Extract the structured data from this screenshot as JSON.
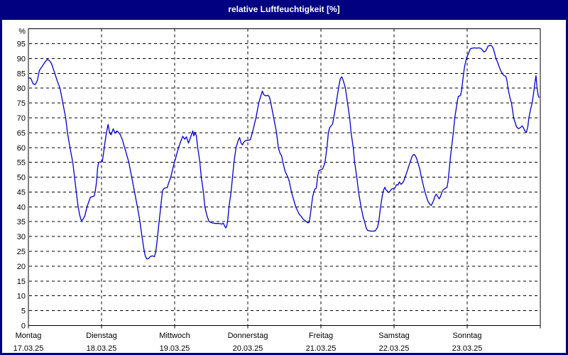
{
  "window": {
    "title": "relative Luftfeuchtigkeit [%]"
  },
  "colors": {
    "titlebar_bg": "#000080",
    "titlebar_text": "#ffffff",
    "plot_bg": "#ffffff",
    "grid": "#000000",
    "line": "#0000c8",
    "label_text": "#000000"
  },
  "chart_data": {
    "type": "line",
    "title": "relative Luftfeuchtigkeit [%]",
    "y_axis": {
      "unit_label": "%",
      "min": 0,
      "max": 100,
      "tick_step": 5,
      "tick_labels": [
        "0",
        "5",
        "10",
        "15",
        "20",
        "25",
        "30",
        "35",
        "40",
        "45",
        "50",
        "55",
        "60",
        "65",
        "70",
        "75",
        "80",
        "85",
        "90",
        "95"
      ],
      "grid": "dashed"
    },
    "x_axis": {
      "grid": "dashed",
      "unit": "days",
      "days": [
        {
          "name": "Montag",
          "date": "17.03.25"
        },
        {
          "name": "Dienstag",
          "date": "18.03.25"
        },
        {
          "name": "Mittwoch",
          "date": "19.03.25"
        },
        {
          "name": "Donnerstag",
          "date": "20.03.25"
        },
        {
          "name": "Freitag",
          "date": "21.03.25"
        },
        {
          "name": "Samstag",
          "date": "22.03.25"
        },
        {
          "name": "Sonntag",
          "date": "23.03.25"
        }
      ]
    },
    "series": [
      {
        "name": "relative Luftfeuchtigkeit",
        "color": "#0000c8",
        "x_unit": "days_since_17.03.25",
        "points": [
          [
            0.005,
            83.5
          ],
          [
            0.034,
            83.3
          ],
          [
            0.063,
            81.5
          ],
          [
            0.092,
            81.2
          ],
          [
            0.121,
            82.5
          ],
          [
            0.15,
            86
          ],
          [
            0.18,
            87
          ],
          [
            0.218,
            88.5
          ],
          [
            0.257,
            89.7
          ],
          [
            0.286,
            89.3
          ],
          [
            0.316,
            88.3
          ],
          [
            0.354,
            85.5
          ],
          [
            0.393,
            82.5
          ],
          [
            0.432,
            80
          ],
          [
            0.471,
            75
          ],
          [
            0.51,
            70
          ],
          [
            0.534,
            65
          ],
          [
            0.568,
            60
          ],
          [
            0.607,
            55
          ],
          [
            0.631,
            50
          ],
          [
            0.655,
            45
          ],
          [
            0.68,
            40
          ],
          [
            0.704,
            37
          ],
          [
            0.723,
            35.4
          ],
          [
            0.743,
            35.6
          ],
          [
            0.772,
            37
          ],
          [
            0.801,
            40
          ],
          [
            0.83,
            42
          ],
          [
            0.85,
            43.3
          ],
          [
            0.879,
            43.5
          ],
          [
            0.898,
            43.6
          ],
          [
            0.913,
            45
          ],
          [
            0.927,
            47.5
          ],
          [
            0.937,
            50
          ],
          [
            0.947,
            53
          ],
          [
            0.959,
            55
          ],
          [
            0.985,
            55.1
          ],
          [
            1.01,
            55.2
          ],
          [
            1.024,
            57.5
          ],
          [
            1.049,
            62
          ],
          [
            1.068,
            65
          ],
          [
            1.089,
            67.8
          ],
          [
            1.112,
            64.9
          ],
          [
            1.131,
            64.3
          ],
          [
            1.16,
            66.3
          ],
          [
            1.184,
            64.8
          ],
          [
            1.209,
            65.6
          ],
          [
            1.233,
            65.1
          ],
          [
            1.257,
            64.3
          ],
          [
            1.286,
            62.5
          ],
          [
            1.316,
            60
          ],
          [
            1.345,
            57.5
          ],
          [
            1.374,
            55
          ],
          [
            1.413,
            50
          ],
          [
            1.451,
            45
          ],
          [
            1.49,
            40
          ],
          [
            1.519,
            36
          ],
          [
            1.548,
            31
          ],
          [
            1.578,
            26
          ],
          [
            1.597,
            23.5
          ],
          [
            1.621,
            22.4
          ],
          [
            1.646,
            22.6
          ],
          [
            1.665,
            23.2
          ],
          [
            1.694,
            23.5
          ],
          [
            1.723,
            23.2
          ],
          [
            1.743,
            25
          ],
          [
            1.762,
            29
          ],
          [
            1.781,
            33.5
          ],
          [
            1.801,
            38
          ],
          [
            1.82,
            42.5
          ],
          [
            1.835,
            45.5
          ],
          [
            1.859,
            46.3
          ],
          [
            1.898,
            46.5
          ],
          [
            1.917,
            48
          ],
          [
            1.947,
            50
          ],
          [
            1.985,
            54
          ],
          [
            2.015,
            56.5
          ],
          [
            2.053,
            60
          ],
          [
            2.083,
            62
          ],
          [
            2.112,
            63.8
          ],
          [
            2.136,
            62.8
          ],
          [
            2.16,
            63.6
          ],
          [
            2.189,
            61.5
          ],
          [
            2.218,
            63.5
          ],
          [
            2.248,
            65.6
          ],
          [
            2.262,
            63.9
          ],
          [
            2.277,
            65.2
          ],
          [
            2.296,
            64.0
          ],
          [
            2.316,
            60
          ],
          [
            2.345,
            55
          ],
          [
            2.364,
            50
          ],
          [
            2.393,
            45
          ],
          [
            2.413,
            40
          ],
          [
            2.442,
            37
          ],
          [
            2.471,
            35
          ],
          [
            2.51,
            34.6
          ],
          [
            2.558,
            34.4
          ],
          [
            2.607,
            34.4
          ],
          [
            2.646,
            34.2
          ],
          [
            2.665,
            34.5
          ],
          [
            2.684,
            33.5
          ],
          [
            2.699,
            32.9
          ],
          [
            2.713,
            33.5
          ],
          [
            2.728,
            36
          ],
          [
            2.743,
            40
          ],
          [
            2.772,
            45
          ],
          [
            2.791,
            50
          ],
          [
            2.811,
            55
          ],
          [
            2.84,
            60
          ],
          [
            2.869,
            62.4
          ],
          [
            2.888,
            63.4
          ],
          [
            2.908,
            61.5
          ],
          [
            2.927,
            60.9
          ],
          [
            2.946,
            61.8
          ],
          [
            2.966,
            62.3
          ],
          [
            2.995,
            62.4
          ],
          [
            3.034,
            62.6
          ],
          [
            3.063,
            65
          ],
          [
            3.092,
            68
          ],
          [
            3.112,
            70
          ],
          [
            3.15,
            75
          ],
          [
            3.18,
            77.5
          ],
          [
            3.199,
            79
          ],
          [
            3.218,
            77.8
          ],
          [
            3.247,
            77.4
          ],
          [
            3.276,
            77.6
          ],
          [
            3.296,
            77
          ],
          [
            3.316,
            75
          ],
          [
            3.354,
            70
          ],
          [
            3.393,
            65
          ],
          [
            3.417,
            60
          ],
          [
            3.442,
            58
          ],
          [
            3.461,
            57.3
          ],
          [
            3.481,
            55
          ],
          [
            3.51,
            52
          ],
          [
            3.549,
            50
          ],
          [
            3.568,
            48.5
          ],
          [
            3.597,
            45
          ],
          [
            3.626,
            42.5
          ],
          [
            3.655,
            40
          ],
          [
            3.684,
            38.5
          ],
          [
            3.704,
            37.5
          ],
          [
            3.733,
            36.7
          ],
          [
            3.752,
            36
          ],
          [
            3.772,
            35.5
          ],
          [
            3.791,
            35.2
          ],
          [
            3.82,
            34.6
          ],
          [
            3.84,
            34.8
          ],
          [
            3.859,
            38
          ],
          [
            3.874,
            41
          ],
          [
            3.888,
            43.5
          ],
          [
            3.903,
            45
          ],
          [
            3.917,
            46
          ],
          [
            3.937,
            46.3
          ],
          [
            3.956,
            50.5
          ],
          [
            3.976,
            52.3
          ],
          [
            3.995,
            52.5
          ],
          [
            4.024,
            52.8
          ],
          [
            4.044,
            54
          ],
          [
            4.058,
            55.5
          ],
          [
            4.083,
            60
          ],
          [
            4.102,
            65
          ],
          [
            4.121,
            66.8
          ],
          [
            4.141,
            67.3
          ],
          [
            4.16,
            68
          ],
          [
            4.175,
            70
          ],
          [
            4.189,
            72
          ],
          [
            4.209,
            75
          ],
          [
            4.228,
            78
          ],
          [
            4.248,
            81
          ],
          [
            4.267,
            83.3
          ],
          [
            4.286,
            83.8
          ],
          [
            4.306,
            82.5
          ],
          [
            4.335,
            80
          ],
          [
            4.364,
            75
          ],
          [
            4.393,
            70
          ],
          [
            4.413,
            65
          ],
          [
            4.442,
            60
          ],
          [
            4.461,
            55
          ],
          [
            4.49,
            50
          ],
          [
            4.515,
            45
          ],
          [
            4.549,
            40
          ],
          [
            4.578,
            36.5
          ],
          [
            4.597,
            35
          ],
          [
            4.617,
            33
          ],
          [
            4.636,
            32.1
          ],
          [
            4.665,
            31.9
          ],
          [
            4.704,
            31.8
          ],
          [
            4.743,
            31.9
          ],
          [
            4.772,
            33
          ],
          [
            4.791,
            35
          ],
          [
            4.816,
            40
          ],
          [
            4.84,
            43.8
          ],
          [
            4.859,
            45.8
          ],
          [
            4.874,
            46.6
          ],
          [
            4.888,
            45.8
          ],
          [
            4.908,
            45.3
          ],
          [
            4.927,
            44.8
          ],
          [
            4.946,
            45.3
          ],
          [
            4.966,
            46
          ],
          [
            4.995,
            46.2
          ],
          [
            5.014,
            46.4
          ],
          [
            5.034,
            47.5
          ],
          [
            5.053,
            47.3
          ],
          [
            5.073,
            48.4
          ],
          [
            5.092,
            47.6
          ],
          [
            5.112,
            47.9
          ],
          [
            5.131,
            48.6
          ],
          [
            5.15,
            50
          ],
          [
            5.18,
            52
          ],
          [
            5.199,
            53.5
          ],
          [
            5.218,
            55
          ],
          [
            5.247,
            57
          ],
          [
            5.267,
            57.7
          ],
          [
            5.286,
            57.4
          ],
          [
            5.306,
            56.5
          ],
          [
            5.325,
            55
          ],
          [
            5.354,
            52.5
          ],
          [
            5.374,
            50
          ],
          [
            5.403,
            47
          ],
          [
            5.422,
            45
          ],
          [
            5.442,
            43.5
          ],
          [
            5.461,
            42
          ],
          [
            5.49,
            40.8
          ],
          [
            5.51,
            40.5
          ],
          [
            5.539,
            42
          ],
          [
            5.558,
            43.5
          ],
          [
            5.578,
            44.3
          ],
          [
            5.597,
            43.5
          ],
          [
            5.617,
            42.7
          ],
          [
            5.636,
            43.5
          ],
          [
            5.655,
            45
          ],
          [
            5.675,
            45.8
          ],
          [
            5.704,
            46.3
          ],
          [
            5.723,
            46.5
          ],
          [
            5.738,
            48.5
          ],
          [
            5.752,
            52
          ],
          [
            5.772,
            57
          ],
          [
            5.791,
            61
          ],
          [
            5.811,
            65
          ],
          [
            5.83,
            70
          ],
          [
            5.85,
            73
          ],
          [
            5.864,
            75.5
          ],
          [
            5.879,
            77.2
          ],
          [
            5.908,
            77.5
          ],
          [
            5.922,
            79
          ],
          [
            5.937,
            82
          ],
          [
            5.951,
            85
          ],
          [
            5.966,
            87.5
          ],
          [
            5.981,
            89
          ],
          [
            5.995,
            90.5
          ],
          [
            6.015,
            91.5
          ],
          [
            6.044,
            93.3
          ],
          [
            6.073,
            93.5
          ],
          [
            6.102,
            93.6
          ],
          [
            6.131,
            93.5
          ],
          [
            6.16,
            93.6
          ],
          [
            6.189,
            93.4
          ],
          [
            6.209,
            92.8
          ],
          [
            6.228,
            92.2
          ],
          [
            6.248,
            92.4
          ],
          [
            6.267,
            93.2
          ],
          [
            6.286,
            94.2
          ],
          [
            6.315,
            94.4
          ],
          [
            6.335,
            94.3
          ],
          [
            6.354,
            93.5
          ],
          [
            6.373,
            92
          ],
          [
            6.393,
            90
          ],
          [
            6.412,
            89
          ],
          [
            6.441,
            87
          ],
          [
            6.461,
            85.8
          ],
          [
            6.48,
            85
          ],
          [
            6.5,
            84.3
          ],
          [
            6.529,
            84
          ],
          [
            6.544,
            82.5
          ],
          [
            6.558,
            80
          ],
          [
            6.587,
            76.5
          ],
          [
            6.606,
            75
          ],
          [
            6.636,
            70
          ],
          [
            6.655,
            68.5
          ],
          [
            6.674,
            67
          ],
          [
            6.703,
            66.3
          ],
          [
            6.732,
            66.8
          ],
          [
            6.752,
            67.3
          ],
          [
            6.771,
            66.5
          ],
          [
            6.79,
            65.6
          ],
          [
            6.81,
            65.1
          ],
          [
            6.829,
            67
          ],
          [
            6.844,
            70
          ],
          [
            6.868,
            73
          ],
          [
            6.888,
            75
          ],
          [
            6.907,
            78
          ],
          [
            6.927,
            82
          ],
          [
            6.941,
            84.2
          ],
          [
            6.956,
            80
          ],
          [
            6.971,
            77.5
          ],
          [
            6.985,
            76.8
          ]
        ]
      }
    ]
  }
}
